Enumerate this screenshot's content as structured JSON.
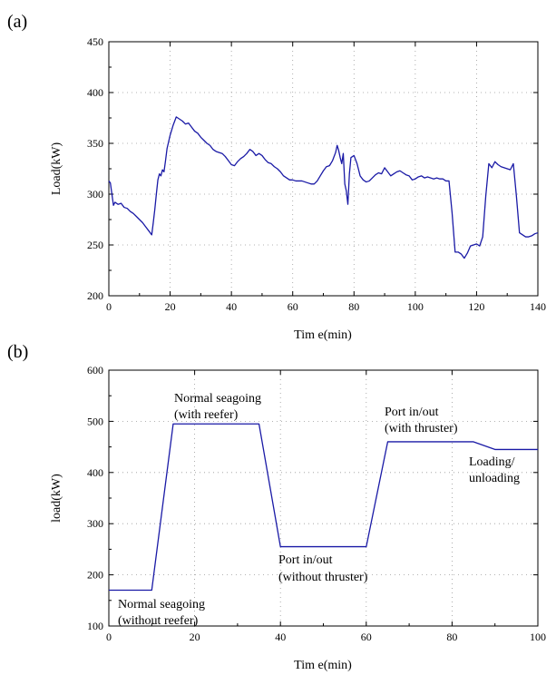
{
  "chart_data": [
    {
      "type": "line",
      "panel_label": "(a)",
      "xlabel": "Tim e(min)",
      "ylabel": "Load(kW)",
      "xlim": [
        0,
        140
      ],
      "ylim": [
        200,
        450
      ],
      "xticks": [
        0,
        20,
        40,
        60,
        80,
        100,
        120,
        140
      ],
      "yticks": [
        200,
        250,
        300,
        350,
        400,
        450
      ],
      "grid": true,
      "series": [
        {
          "color": "#1a1aa6",
          "points": [
            [
              0,
              313
            ],
            [
              0.5,
              311
            ],
            [
              1,
              300
            ],
            [
              1.5,
              289
            ],
            [
              2,
              292
            ],
            [
              3,
              290
            ],
            [
              4,
              291
            ],
            [
              5,
              287
            ],
            [
              6,
              286
            ],
            [
              7,
              283
            ],
            [
              8,
              281
            ],
            [
              9,
              278
            ],
            [
              10,
              275
            ],
            [
              11,
              272
            ],
            [
              12,
              268
            ],
            [
              13,
              264
            ],
            [
              14,
              260
            ],
            [
              14.5,
              272
            ],
            [
              15,
              285
            ],
            [
              15.5,
              300
            ],
            [
              16,
              314
            ],
            [
              16.5,
              320
            ],
            [
              17,
              318
            ],
            [
              17.5,
              324
            ],
            [
              18,
              322
            ],
            [
              18.5,
              333
            ],
            [
              19,
              345
            ],
            [
              20,
              358
            ],
            [
              21,
              368
            ],
            [
              22,
              376
            ],
            [
              23,
              374
            ],
            [
              24,
              372
            ],
            [
              25,
              369
            ],
            [
              26,
              370
            ],
            [
              27,
              366
            ],
            [
              28,
              362
            ],
            [
              29,
              360
            ],
            [
              30,
              356
            ],
            [
              31,
              353
            ],
            [
              32,
              350
            ],
            [
              33,
              348
            ],
            [
              34,
              344
            ],
            [
              35,
              342
            ],
            [
              36,
              341
            ],
            [
              37,
              340
            ],
            [
              38,
              337
            ],
            [
              39,
              333
            ],
            [
              40,
              329
            ],
            [
              41,
              328
            ],
            [
              42,
              332
            ],
            [
              43,
              335
            ],
            [
              44,
              337
            ],
            [
              45,
              340
            ],
            [
              46,
              344
            ],
            [
              47,
              342
            ],
            [
              48,
              338
            ],
            [
              49,
              340
            ],
            [
              50,
              338
            ],
            [
              51,
              334
            ],
            [
              52,
              331
            ],
            [
              53,
              330
            ],
            [
              54,
              327
            ],
            [
              55,
              325
            ],
            [
              56,
              322
            ],
            [
              57,
              318
            ],
            [
              58,
              316
            ],
            [
              59,
              314
            ],
            [
              60,
              314
            ],
            [
              61,
              313
            ],
            [
              62,
              313
            ],
            [
              63,
              313
            ],
            [
              64,
              312
            ],
            [
              65,
              311
            ],
            [
              66,
              310
            ],
            [
              67,
              310
            ],
            [
              68,
              313
            ],
            [
              69,
              318
            ],
            [
              70,
              323
            ],
            [
              71,
              327
            ],
            [
              72,
              328
            ],
            [
              73,
              333
            ],
            [
              74,
              341
            ],
            [
              74.5,
              348
            ],
            [
              75,
              343
            ],
            [
              75.5,
              336
            ],
            [
              76,
              330
            ],
            [
              76.5,
              340
            ],
            [
              77,
              310
            ],
            [
              77.5,
              303
            ],
            [
              78,
              290
            ],
            [
              78.5,
              320
            ],
            [
              79,
              336
            ],
            [
              80,
              338
            ],
            [
              81,
              330
            ],
            [
              82,
              318
            ],
            [
              83,
              314
            ],
            [
              84,
              312
            ],
            [
              85,
              313
            ],
            [
              86,
              316
            ],
            [
              87,
              319
            ],
            [
              88,
              321
            ],
            [
              89,
              320
            ],
            [
              90,
              326
            ],
            [
              91,
              322
            ],
            [
              92,
              318
            ],
            [
              93,
              320
            ],
            [
              94,
              322
            ],
            [
              95,
              323
            ],
            [
              96,
              321
            ],
            [
              97,
              319
            ],
            [
              98,
              318
            ],
            [
              99,
              314
            ],
            [
              100,
              315
            ],
            [
              101,
              317
            ],
            [
              102,
              318
            ],
            [
              103,
              316
            ],
            [
              104,
              317
            ],
            [
              105,
              316
            ],
            [
              106,
              315
            ],
            [
              107,
              316
            ],
            [
              108,
              315
            ],
            [
              109,
              315
            ],
            [
              110,
              313
            ],
            [
              111,
              313
            ],
            [
              112,
              282
            ],
            [
              113,
              243
            ],
            [
              114,
              243
            ],
            [
              115,
              241
            ],
            [
              116,
              237
            ],
            [
              117,
              242
            ],
            [
              118,
              249
            ],
            [
              119,
              250
            ],
            [
              120,
              251
            ],
            [
              121,
              249
            ],
            [
              122,
              258
            ],
            [
              123,
              298
            ],
            [
              124,
              330
            ],
            [
              125,
              326
            ],
            [
              126,
              332
            ],
            [
              127,
              329
            ],
            [
              128,
              327
            ],
            [
              129,
              326
            ],
            [
              130,
              325
            ],
            [
              131,
              324
            ],
            [
              132,
              330
            ],
            [
              133,
              298
            ],
            [
              134,
              262
            ],
            [
              135,
              260
            ],
            [
              136,
              258
            ],
            [
              137,
              258
            ],
            [
              138,
              259
            ],
            [
              139,
              261
            ],
            [
              140,
              262
            ]
          ]
        }
      ]
    },
    {
      "type": "line",
      "panel_label": "(b)",
      "xlabel": "Tim e(min)",
      "ylabel": "load(kW)",
      "xlim": [
        0,
        100
      ],
      "ylim": [
        100,
        600
      ],
      "xticks": [
        0,
        20,
        40,
        60,
        80,
        100
      ],
      "yticks": [
        100,
        200,
        300,
        400,
        500,
        600
      ],
      "grid": true,
      "series": [
        {
          "color": "#1a1aa6",
          "points": [
            [
              0,
              170
            ],
            [
              10,
              170
            ],
            [
              15,
              495
            ],
            [
              35,
              495
            ],
            [
              40,
              255
            ],
            [
              60,
              255
            ],
            [
              65,
              460
            ],
            [
              85,
              460
            ],
            [
              90,
              445
            ],
            [
              100,
              445
            ]
          ]
        }
      ],
      "annotations": [
        {
          "lines": [
            "Normal seagoing",
            "(without reefer)"
          ]
        },
        {
          "lines": [
            "Normal seagoing",
            "(with reefer)"
          ]
        },
        {
          "lines": [
            "Port in/out",
            "(without thruster)"
          ]
        },
        {
          "lines": [
            "Port in/out",
            "(with thruster)"
          ]
        },
        {
          "lines": [
            "Loading/",
            "unloading"
          ]
        }
      ]
    }
  ]
}
